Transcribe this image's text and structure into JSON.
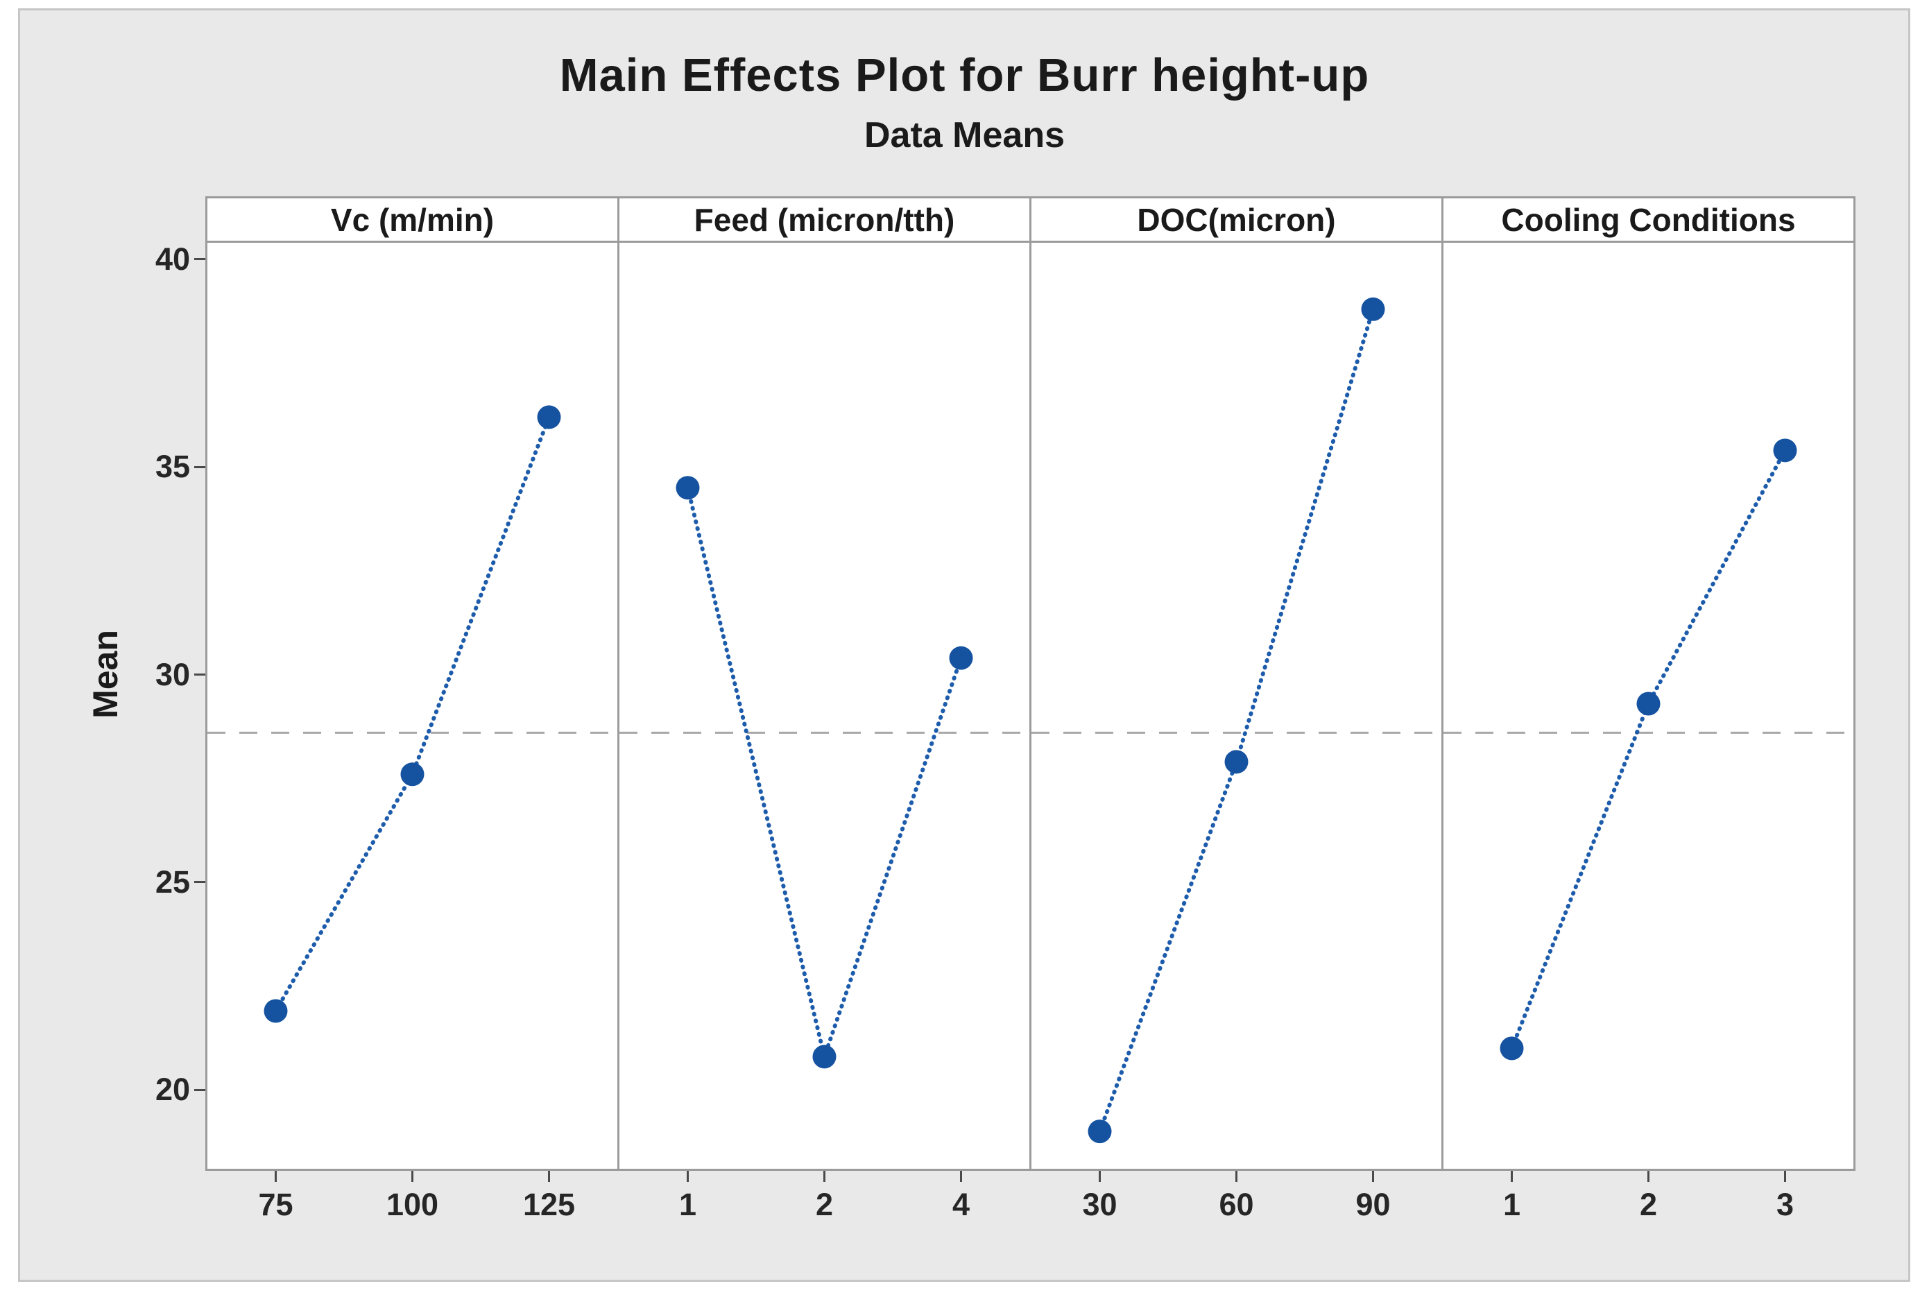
{
  "chart_data": {
    "type": "line",
    "title": "Main Effects Plot for Burr height-up",
    "subtitle": "Data Means",
    "ylabel": "Mean",
    "ylim": [
      18.1,
      40.4
    ],
    "yticks": [
      40,
      35,
      30,
      25,
      20
    ],
    "grand_mean": 28.6,
    "grid": "off",
    "legend": "none",
    "reference_line_style": "dashed",
    "series_style": "dotted-line-with-markers",
    "panels": [
      {
        "label": "Vc (m/min)",
        "categories": [
          "75",
          "100",
          "125"
        ],
        "values": [
          21.9,
          27.6,
          36.2
        ]
      },
      {
        "label": "Feed (micron/tth)",
        "categories": [
          "1",
          "2",
          "4"
        ],
        "values": [
          34.5,
          20.8,
          30.4
        ]
      },
      {
        "label": "DOC(micron)",
        "categories": [
          "30",
          "60",
          "90"
        ],
        "values": [
          19.0,
          27.9,
          38.8
        ]
      },
      {
        "label": "Cooling Conditions",
        "categories": [
          "1",
          "2",
          "3"
        ],
        "values": [
          21.0,
          29.3,
          35.4
        ]
      }
    ],
    "colors": {
      "marker": "#1552a0",
      "line": "#1d5cab",
      "mean_line": "#a8a8a8",
      "background": "#e9e9e9",
      "panel_bg": "#ffffff",
      "panel_border": "#9b9b9b",
      "text": "#1a1a1a",
      "tick": "#4a4a4a"
    }
  }
}
